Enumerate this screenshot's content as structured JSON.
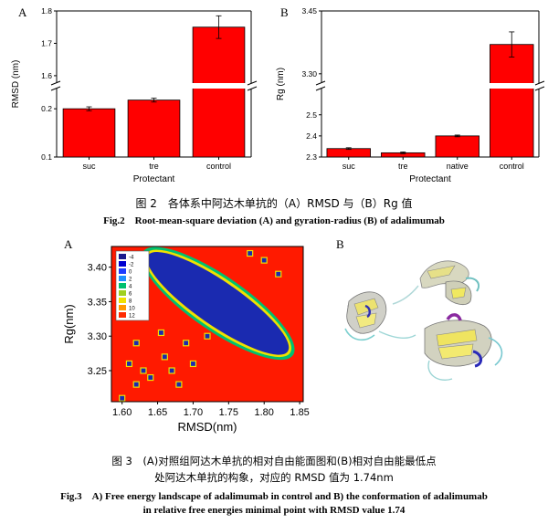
{
  "fig2": {
    "caption_zh": "图 2　各体系中阿达木单抗的（A）RMSD 与（B）Rg 值",
    "caption_en": "Fig.2　Root-mean-square deviation (A) and gyration-radius (B) of adalimumab"
  },
  "fig3": {
    "caption_zh_line1": "图 3　(A)对照组阿达木单抗的相对自由能面图和(B)相对自由能最低点",
    "caption_zh_line2": "处阿达木单抗的构象，对应的 RMSD 值为 1.74nm",
    "caption_en_line1": "Fig.3　A) Free energy landscape of adalimumab in control and B) the conformation of adalimumab",
    "caption_en_line2": "in relative free energies minimal point with RMSD value 1.74"
  },
  "chart_data": [
    {
      "panel": "A",
      "type": "bar",
      "categories": [
        "suc",
        "tre",
        "control"
      ],
      "values": [
        0.2,
        0.218,
        1.75
      ],
      "errors": [
        0.004,
        0.004,
        0.035
      ],
      "xlabel": "Protectant",
      "ylabel": "RMSD (nm)",
      "axis_break": [
        0.24,
        1.58
      ],
      "yticks": [
        "0.1",
        "0.2",
        "1.6",
        "1.7",
        "1.8"
      ],
      "bar_color": "#ff0000"
    },
    {
      "panel": "B",
      "type": "bar",
      "categories": [
        "suc",
        "tre",
        "native",
        "control"
      ],
      "values": [
        2.34,
        2.32,
        2.4,
        3.37
      ],
      "errors": [
        0.004,
        0.004,
        0.004,
        0.03
      ],
      "xlabel": "Protectant",
      "ylabel": "Rg (nm)",
      "axis_break": [
        2.62,
        3.28
      ],
      "yticks": [
        "2.3",
        "2.4",
        "2.5",
        "3.30",
        "3.45"
      ],
      "bar_color": "#ff0000"
    },
    {
      "panel": "A",
      "type": "heatmap",
      "xlabel": "RMSD(nm)",
      "ylabel": "Rg(nm)",
      "xlim": [
        1.585,
        1.855
      ],
      "ylim": [
        3.205,
        3.43
      ],
      "xticks": [
        "1.60",
        "1.65",
        "1.70",
        "1.75",
        "1.80",
        "1.85"
      ],
      "yticks": [
        "3.25",
        "3.30",
        "3.35",
        "3.40"
      ],
      "legend_labels": [
        "-4",
        "-2",
        "0",
        "2",
        "4",
        "6",
        "8",
        "10",
        "12"
      ],
      "legend_colors": [
        "#1a1a8c",
        "#0000d0",
        "#1e3cff",
        "#1e90ff",
        "#00c070",
        "#a0d020",
        "#f0e000",
        "#ff9900",
        "#ff2a00"
      ],
      "background_color": "#ff1a00",
      "minimum_color": "#1a2ab0"
    }
  ],
  "figure3_panelB": {
    "letter": "B",
    "image": "adalimumab-conformation-ribbon"
  }
}
